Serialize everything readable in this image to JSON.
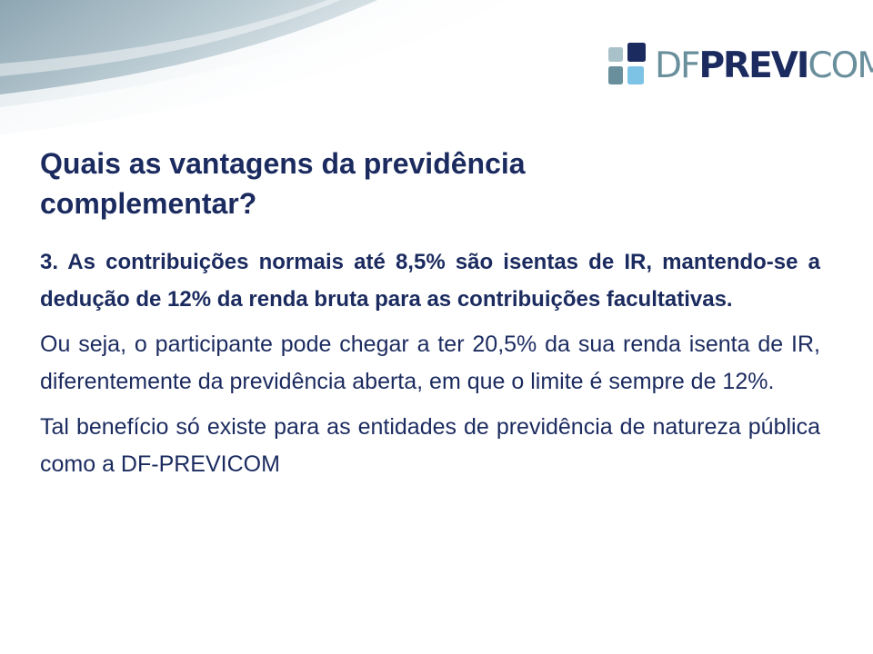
{
  "logo": {
    "part1": "DF",
    "part2": "PREVI",
    "part3": "COM"
  },
  "slide": {
    "title": "Quais as vantagens da previdência complementar?",
    "paragraphs": [
      "3. As contribuições normais até  8,5% são isentas de IR, mantendo-se a dedução de 12% da renda bruta  para as contribuições facultativas.",
      "Ou seja, o participante pode chegar a ter 20,5% da sua renda isenta de IR, diferentemente da previdência aberta, em que o limite é sempre de 12%.",
      "Tal benefício só existe para as entidades de previdência de natureza pública como a DF-PREVICOM"
    ]
  },
  "colors": {
    "text": "#1b2b5f",
    "logo_secondary": "#6a8f9c",
    "swoosh_dark": "#9fb3bd",
    "swoosh_light": "#e6edf0"
  }
}
